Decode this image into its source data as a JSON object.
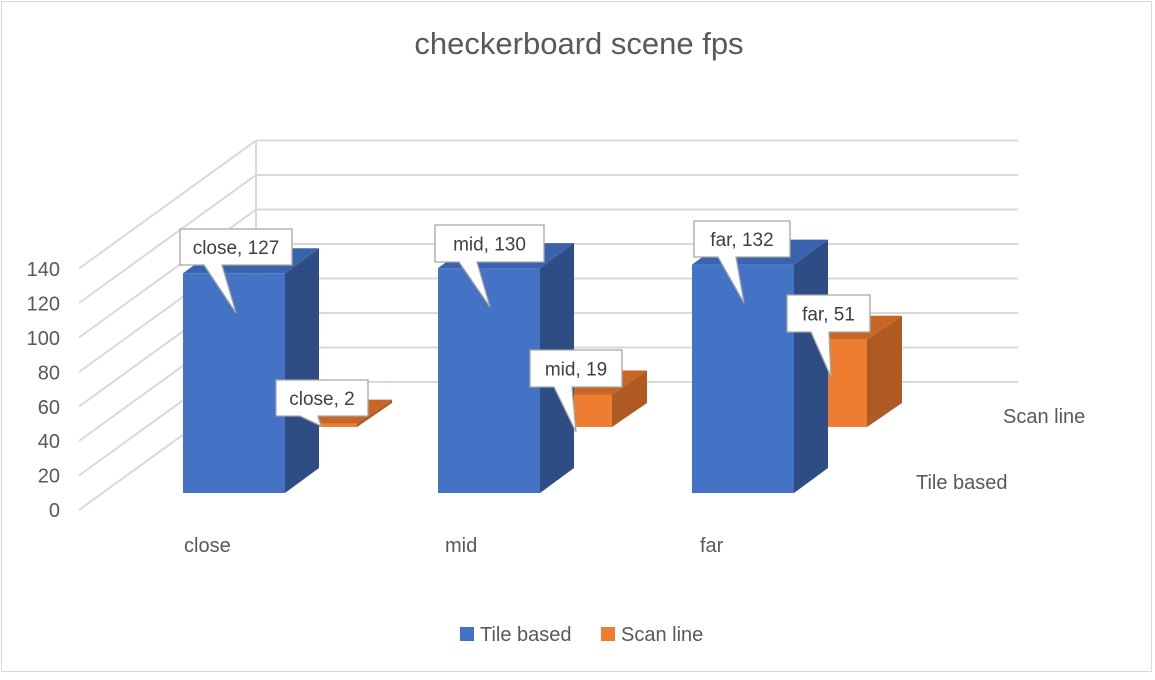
{
  "chart_data": {
    "type": "bar",
    "title": "checkerboard scene fps",
    "categories": [
      "close",
      "mid",
      "far"
    ],
    "series": [
      {
        "name": "Tile based",
        "values": [
          127,
          130,
          132
        ],
        "color": "#4472c4",
        "side_color": "#2e4d85",
        "top_color": "#3a63ad"
      },
      {
        "name": "Scan line",
        "values": [
          2,
          19,
          51
        ],
        "color": "#ed7d31",
        "side_color": "#ae5a22",
        "top_color": "#c86626"
      }
    ],
    "y_ticks": [
      0,
      20,
      40,
      60,
      80,
      100,
      120,
      140
    ],
    "ylim": [
      0,
      140
    ],
    "depth_axis_labels": [
      "Tile based",
      "Scan line"
    ],
    "data_labels": [
      [
        "close, 127",
        "mid, 130",
        "far, 132"
      ],
      [
        "close, 2",
        "mid, 19",
        "far, 51"
      ]
    ],
    "legend_position": "bottom",
    "gridlines": true
  }
}
